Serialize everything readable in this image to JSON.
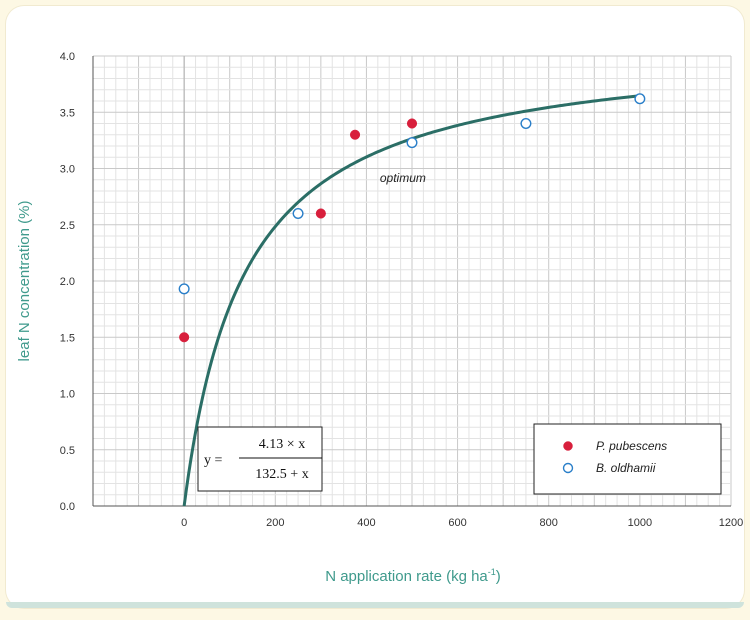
{
  "chart_data": {
    "type": "scatter",
    "xlabel": "N application rate (kg ha",
    "xlabel_sup": "-1",
    "xlabel_tail": ")",
    "ylabel": "leaf N concentration (%)",
    "xlim": [
      -200,
      1200
    ],
    "ylim": [
      0.0,
      4.0
    ],
    "x_ticks": [
      "0",
      "200",
      "400",
      "600",
      "800",
      "1000",
      "1200"
    ],
    "y_ticks": [
      "0.0",
      "0.5",
      "1.0",
      "1.5",
      "2.0",
      "2.5",
      "3.0",
      "3.5",
      "4.0"
    ],
    "grid": true,
    "legend_position": "bottom-right",
    "series": [
      {
        "name": "P. pubescens",
        "marker": "filled-circle",
        "color": "#d81f3c",
        "points": [
          [
            0,
            1.5
          ],
          [
            300,
            2.6
          ],
          [
            375,
            3.3
          ],
          [
            500,
            3.4
          ]
        ]
      },
      {
        "name": "B. oldhamii",
        "marker": "open-circle",
        "color": "#2a7fc9",
        "points": [
          [
            0,
            1.93
          ],
          [
            250,
            2.6
          ],
          [
            500,
            3.23
          ],
          [
            750,
            3.4
          ],
          [
            1000,
            3.62
          ]
        ]
      }
    ],
    "fit": {
      "equation": {
        "lhs": "y =",
        "numerator": "4.13 × x",
        "denominator": "132.5 + x"
      },
      "a": 4.13,
      "b": 132.5,
      "x_range": [
        0,
        1000
      ],
      "color": "#2b6e66"
    },
    "annotation": {
      "text": "optimum",
      "x": 480,
      "y": 2.88
    }
  }
}
